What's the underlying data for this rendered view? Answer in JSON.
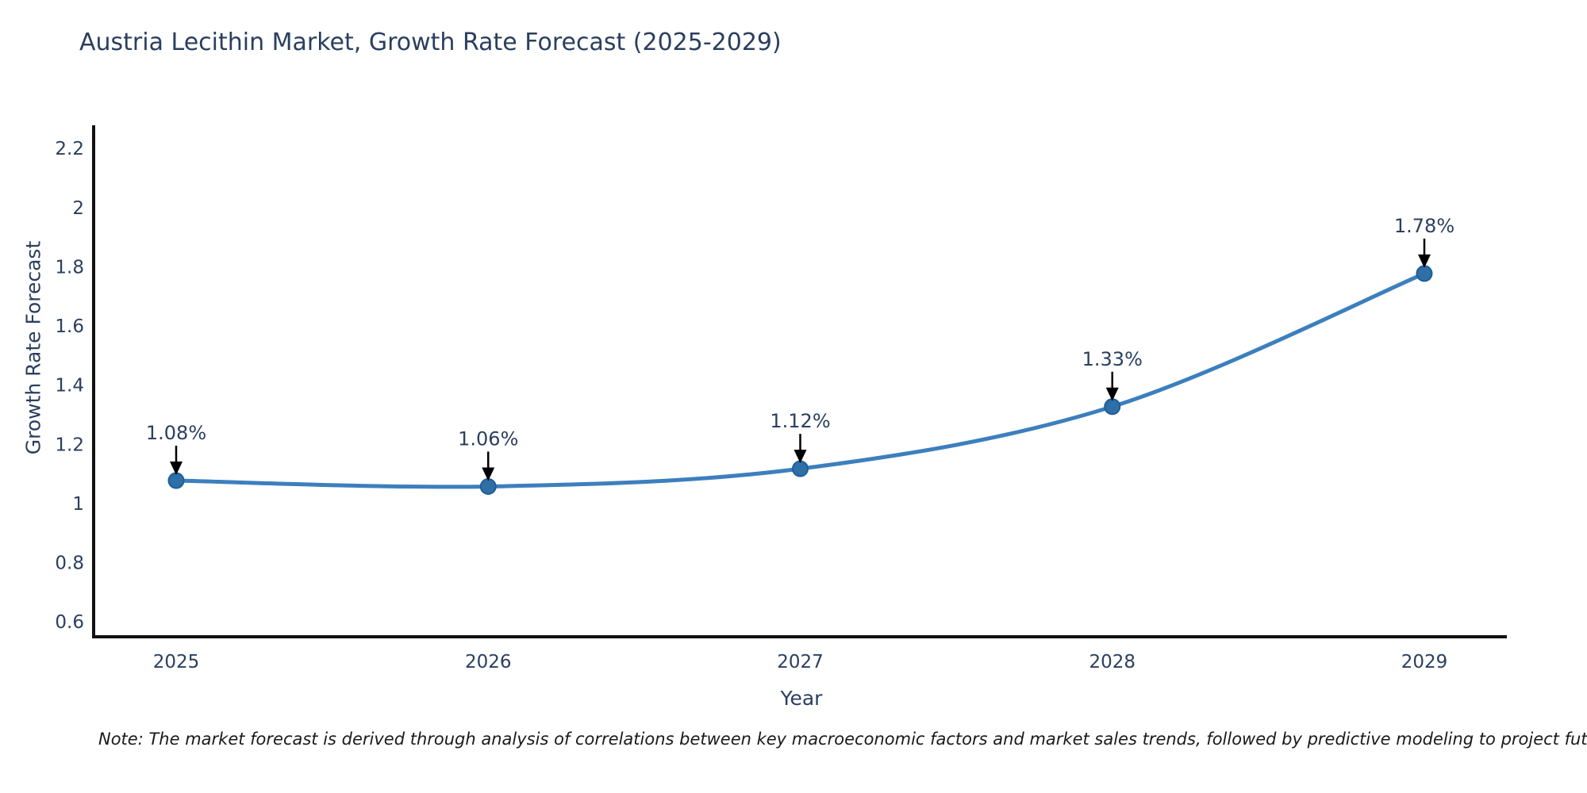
{
  "title": "Austria Lecithin Market, Growth Rate Forecast (2025-2029)",
  "note": "Note: The market forecast is derived through analysis of correlations between key macroeconomic factors and market sales trends, followed by predictive modeling to project future sales",
  "chart_data": {
    "type": "line",
    "title": "Austria Lecithin Market, Growth Rate Forecast (2025-2029)",
    "xlabel": "Year",
    "ylabel": "Growth Rate Forecast",
    "categories": [
      "2025",
      "2026",
      "2027",
      "2028",
      "2029"
    ],
    "values": [
      1.08,
      1.06,
      1.12,
      1.33,
      1.78
    ],
    "point_labels": [
      "1.08%",
      "1.06%",
      "1.12%",
      "1.33%",
      "1.78%"
    ],
    "y_ticks": [
      "0.6",
      "0.8",
      "1",
      "1.2",
      "1.4",
      "1.6",
      "1.8",
      "2",
      "2.2"
    ],
    "y_tick_values": [
      0.6,
      0.8,
      1.0,
      1.2,
      1.4,
      1.6,
      1.8,
      2.0,
      2.2
    ],
    "ylim": [
      0.552,
      2.281
    ],
    "grid": false,
    "legend": false,
    "marker_style": "circle",
    "annotation_arrows": true,
    "colors": {
      "line": "#3c7fbe",
      "marker_fill": "#2e6fa8",
      "marker_edge": "#1f5e97",
      "axis_line": "#111111",
      "tick_text": "#2a3f5f",
      "title_text": "#2a3f5f",
      "annotation_text": "#2a3f5f",
      "arrow": "#000000",
      "note_text": "#1a1a1a",
      "background": "#ffffff"
    }
  }
}
